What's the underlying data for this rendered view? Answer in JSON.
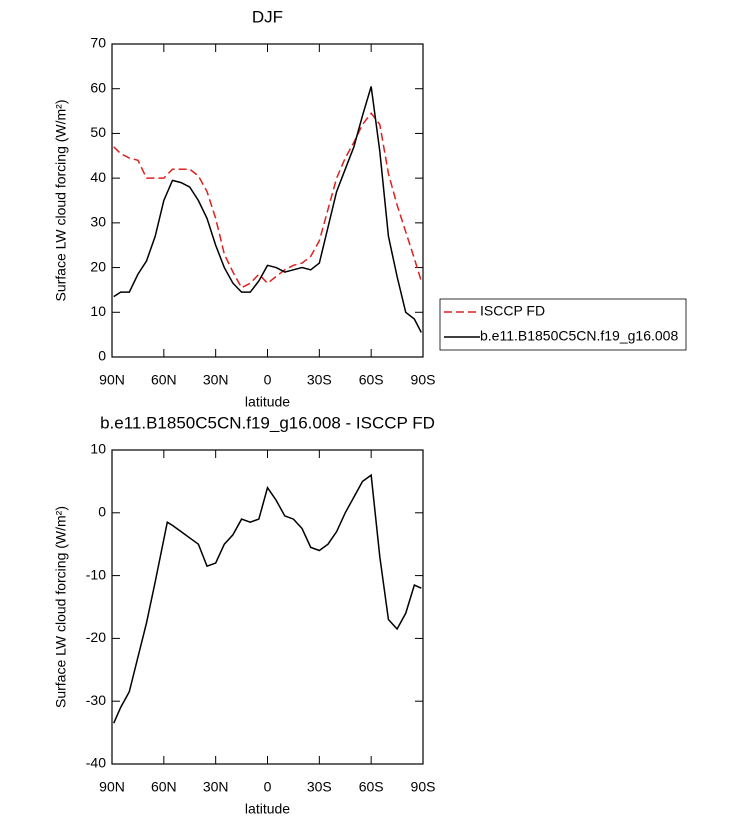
{
  "chart_data": [
    {
      "type": "line",
      "title": "DJF",
      "x_label": "latitude",
      "y_label": "Surface LW cloud forcing (W/m²)",
      "x": [
        89,
        85,
        80,
        75,
        70,
        65,
        60,
        55,
        50,
        45,
        40,
        35,
        30,
        25,
        20,
        15,
        10,
        5,
        0,
        -5,
        -10,
        -15,
        -20,
        -25,
        -30,
        -35,
        -40,
        -45,
        -50,
        -55,
        -60,
        -65,
        -70,
        -75,
        -80,
        -85,
        -89
      ],
      "series": [
        {
          "name": "ISCCP FD",
          "color": "#e0201e",
          "linestyle": "dashed",
          "values": [
            47,
            45.5,
            44.5,
            44,
            40,
            40,
            40,
            42,
            42,
            42,
            40.5,
            37,
            31,
            23,
            19,
            15.5,
            16.5,
            18.5,
            16.5,
            18,
            19.5,
            20.5,
            21,
            22.5,
            26,
            33,
            40,
            44.5,
            48,
            52,
            54.5,
            52,
            41,
            34,
            28,
            22,
            17
          ]
        },
        {
          "name": "b.e11.B1850C5CN.f19_g16.008",
          "color": "#000000",
          "linestyle": "solid",
          "values": [
            13.5,
            14.5,
            14.5,
            18.5,
            21.5,
            27,
            35,
            39.5,
            39,
            38,
            35,
            31,
            25,
            20,
            16.5,
            14.5,
            14.5,
            17,
            20.5,
            20,
            19,
            19.5,
            20,
            19.5,
            21,
            29,
            37,
            42,
            47,
            54,
            60.5,
            46,
            27,
            18,
            10,
            8.5,
            5.5
          ]
        }
      ],
      "xlim": [
        90,
        -90
      ],
      "xticks": [
        {
          "value": 90,
          "label": "90N"
        },
        {
          "value": 60,
          "label": "60N"
        },
        {
          "value": 30,
          "label": "30N"
        },
        0,
        {
          "value": -30,
          "label": "30S"
        },
        {
          "value": -60,
          "label": "60S"
        },
        {
          "value": -90,
          "label": "90S"
        }
      ],
      "ylim": [
        0,
        70
      ],
      "yticks": [
        0,
        10,
        20,
        30,
        40,
        50,
        60,
        70
      ],
      "legend": "right"
    },
    {
      "type": "line",
      "title": "b.e11.B1850C5CN.f19_g16.008 - ISCCP FD",
      "x_label": "latitude",
      "y_label": "Surface LW cloud forcing (W/m²)",
      "x": [
        89,
        85,
        80,
        75,
        70,
        65,
        58,
        55,
        50,
        45,
        40,
        35,
        30,
        25,
        20,
        15,
        10,
        5,
        0,
        -5,
        -10,
        -15,
        -20,
        -25,
        -30,
        -35,
        -40,
        -45,
        -50,
        -55,
        -60,
        -65,
        -70,
        -75,
        -80,
        -85,
        -89
      ],
      "series": [
        {
          "color": "#000000",
          "linestyle": "solid",
          "values": [
            -33.5,
            -31,
            -28.5,
            -23,
            -17.5,
            -11,
            -1.5,
            -2,
            -3,
            -4,
            -5,
            -8.5,
            -8,
            -5,
            -3.5,
            -1,
            -1.5,
            -1,
            4,
            2,
            -0.5,
            -1,
            -2.5,
            -5.5,
            -6,
            -5,
            -3,
            0,
            2.5,
            5,
            6,
            -7,
            -17,
            -18.5,
            -16,
            -11.5,
            -12
          ]
        }
      ],
      "xlim": [
        90,
        -90
      ],
      "xticks": [
        {
          "value": 90,
          "label": "90N"
        },
        {
          "value": 60,
          "label": "60N"
        },
        {
          "value": 30,
          "label": "30N"
        },
        0,
        {
          "value": -30,
          "label": "30S"
        },
        {
          "value": -60,
          "label": "60S"
        },
        {
          "value": -90,
          "label": "90S"
        }
      ],
      "ylim": [
        -40,
        10
      ],
      "yticks": [
        -40,
        -30,
        -20,
        -10,
        0,
        10
      ]
    }
  ]
}
